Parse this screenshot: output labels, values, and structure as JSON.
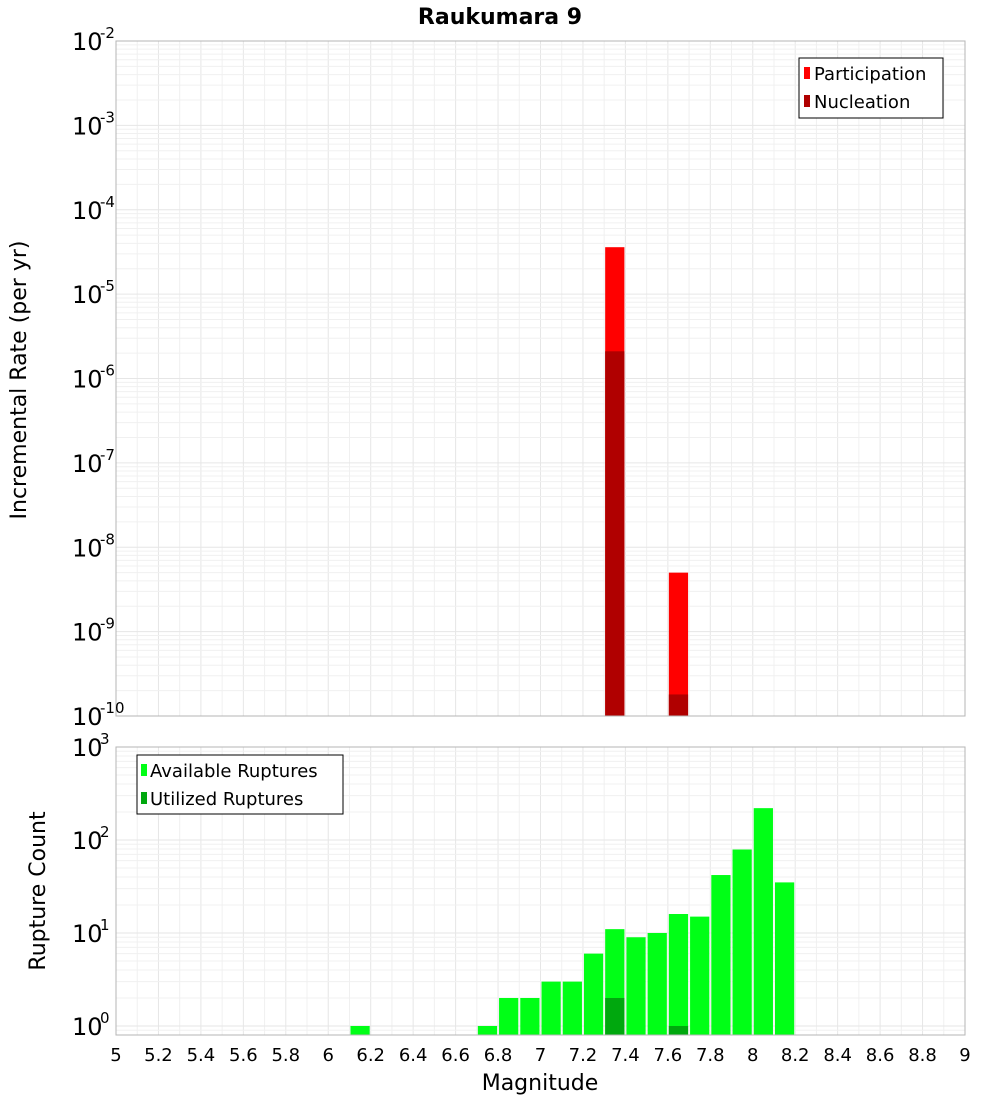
{
  "chart_data": [
    {
      "type": "bar",
      "title": "Raukumara 9",
      "ylabel": "Incremental Rate (per yr)",
      "xlabel": "",
      "xlim": [
        5,
        9
      ],
      "ylim": [
        1e-10,
        0.01
      ],
      "yscale": "log",
      "ytick_exponents": [
        "-10",
        "-9",
        "-8",
        "-7",
        "-6",
        "-5",
        "-4",
        "-3",
        "-2"
      ],
      "bar_width": 0.1,
      "grid": true,
      "legend_position": "top-right",
      "series": [
        {
          "name": "Participation",
          "color": "#ff0000",
          "x": [
            7.35,
            7.65
          ],
          "values": [
            3.6e-05,
            5e-09
          ]
        },
        {
          "name": "Nucleation",
          "color": "#b00000",
          "x": [
            7.35,
            7.65
          ],
          "values": [
            2.1e-06,
            1.8e-10
          ]
        }
      ]
    },
    {
      "type": "bar",
      "title": "",
      "ylabel": "Rupture Count",
      "xlabel": "Magnitude",
      "xlim": [
        5,
        9
      ],
      "ylim": [
        0.8,
        1000
      ],
      "yscale": "log",
      "ytick_exponents": [
        "0",
        "1",
        "2",
        "3"
      ],
      "bar_width": 0.1,
      "grid": true,
      "legend_position": "top-left",
      "xticks": [
        "5",
        "5.2",
        "5.4",
        "5.6",
        "5.8",
        "6",
        "6.2",
        "6.4",
        "6.6",
        "6.8",
        "7",
        "7.2",
        "7.4",
        "7.6",
        "7.8",
        "8",
        "8.2",
        "8.4",
        "8.6",
        "8.8",
        "9"
      ],
      "series": [
        {
          "name": "Available Ruptures",
          "color": "#00ff16",
          "x": [
            6.15,
            6.75,
            6.85,
            6.95,
            7.05,
            7.15,
            7.25,
            7.35,
            7.45,
            7.55,
            7.65,
            7.75,
            7.85,
            7.95,
            8.05,
            8.15
          ],
          "values": [
            1,
            1,
            2,
            2,
            3,
            3,
            6,
            11,
            9,
            10,
            16,
            15,
            42,
            79,
            220,
            35
          ]
        },
        {
          "name": "Utilized Ruptures",
          "color": "#00a80e",
          "x": [
            7.35,
            7.65
          ],
          "values": [
            2,
            1
          ]
        }
      ]
    }
  ]
}
